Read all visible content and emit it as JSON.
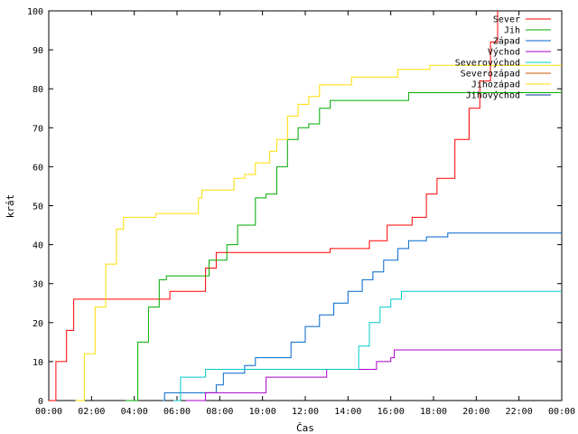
{
  "chart_data": {
    "type": "line",
    "xlabel": "Čas",
    "ylabel": "krát",
    "xlim": [
      "00:00",
      "24:00"
    ],
    "ylim": [
      0,
      100
    ],
    "x_ticks": [
      "00:00",
      "02:00",
      "04:00",
      "06:00",
      "08:00",
      "10:00",
      "12:00",
      "14:00",
      "16:00",
      "18:00",
      "20:00",
      "22:00",
      "00:00"
    ],
    "y_ticks": [
      0,
      10,
      20,
      30,
      40,
      50,
      60,
      70,
      80,
      90,
      100
    ],
    "legend_position": "top-right",
    "grid": false,
    "series": [
      {
        "name": "Sever",
        "color": "#ff0000",
        "points": [
          [
            "00:00",
            0
          ],
          [
            "00:20",
            10
          ],
          [
            "00:50",
            18
          ],
          [
            "01:10",
            26
          ],
          [
            "05:30",
            26
          ],
          [
            "05:40",
            28
          ],
          [
            "07:00",
            28
          ],
          [
            "07:20",
            34
          ],
          [
            "07:50",
            38
          ],
          [
            "13:00",
            38
          ],
          [
            "13:10",
            39
          ],
          [
            "14:40",
            39
          ],
          [
            "15:00",
            41
          ],
          [
            "15:50",
            45
          ],
          [
            "16:40",
            45
          ],
          [
            "17:00",
            47
          ],
          [
            "17:40",
            53
          ],
          [
            "18:10",
            57
          ],
          [
            "19:00",
            67
          ],
          [
            "19:40",
            75
          ],
          [
            "20:10",
            82
          ],
          [
            "20:40",
            92
          ],
          [
            "21:00",
            100
          ]
        ]
      },
      {
        "name": "Jih",
        "color": "#00aa00",
        "points": [
          [
            "03:35",
            0
          ],
          [
            "04:10",
            15
          ],
          [
            "04:40",
            24
          ],
          [
            "05:10",
            31
          ],
          [
            "05:30",
            32
          ],
          [
            "07:00",
            32
          ],
          [
            "07:30",
            36
          ],
          [
            "08:20",
            40
          ],
          [
            "08:50",
            45
          ],
          [
            "09:40",
            52
          ],
          [
            "10:10",
            53
          ],
          [
            "10:40",
            60
          ],
          [
            "11:10",
            67
          ],
          [
            "11:40",
            70
          ],
          [
            "12:10",
            71
          ],
          [
            "12:40",
            75
          ],
          [
            "13:10",
            77
          ],
          [
            "16:40",
            77
          ],
          [
            "16:50",
            79
          ],
          [
            "24:00",
            79
          ]
        ]
      },
      {
        "name": "Západ",
        "color": "#0066cc",
        "points": [
          [
            "05:20",
            0
          ],
          [
            "05:25",
            2
          ],
          [
            "07:40",
            2
          ],
          [
            "07:50",
            4
          ],
          [
            "08:10",
            7
          ],
          [
            "09:10",
            9
          ],
          [
            "09:40",
            11
          ],
          [
            "11:00",
            11
          ],
          [
            "11:20",
            15
          ],
          [
            "12:00",
            19
          ],
          [
            "12:40",
            22
          ],
          [
            "13:20",
            25
          ],
          [
            "14:00",
            28
          ],
          [
            "14:40",
            31
          ],
          [
            "15:10",
            33
          ],
          [
            "15:40",
            36
          ],
          [
            "16:20",
            39
          ],
          [
            "16:50",
            41
          ],
          [
            "17:40",
            42
          ],
          [
            "18:40",
            43
          ],
          [
            "24:00",
            43
          ]
        ]
      },
      {
        "name": "Východ",
        "color": "#aa00cc",
        "points": [
          [
            "06:25",
            0
          ],
          [
            "07:20",
            2
          ],
          [
            "10:00",
            2
          ],
          [
            "10:10",
            6
          ],
          [
            "12:50",
            6
          ],
          [
            "13:00",
            8
          ],
          [
            "15:00",
            8
          ],
          [
            "15:20",
            10
          ],
          [
            "16:00",
            11
          ],
          [
            "16:10",
            13
          ],
          [
            "24:00",
            13
          ]
        ]
      },
      {
        "name": "Severovýchod",
        "color": "#00cccc",
        "points": [
          [
            "05:50",
            0
          ],
          [
            "06:10",
            6
          ],
          [
            "07:00",
            6
          ],
          [
            "07:20",
            8
          ],
          [
            "14:00",
            8
          ],
          [
            "14:30",
            14
          ],
          [
            "15:00",
            20
          ],
          [
            "15:30",
            24
          ],
          [
            "16:00",
            26
          ],
          [
            "16:30",
            28
          ],
          [
            "24:00",
            28
          ]
        ]
      },
      {
        "name": "Severozápad",
        "color": "#cc5500",
        "points": []
      },
      {
        "name": "Jihozápad",
        "color": "#ffdd00",
        "points": [
          [
            "01:15",
            0
          ],
          [
            "01:40",
            12
          ],
          [
            "02:10",
            24
          ],
          [
            "02:40",
            35
          ],
          [
            "03:10",
            44
          ],
          [
            "03:30",
            47
          ],
          [
            "04:50",
            47
          ],
          [
            "05:00",
            48
          ],
          [
            "06:40",
            48
          ],
          [
            "07:00",
            52
          ],
          [
            "07:10",
            54
          ],
          [
            "08:20",
            54
          ],
          [
            "08:40",
            57
          ],
          [
            "09:10",
            58
          ],
          [
            "09:40",
            61
          ],
          [
            "10:20",
            64
          ],
          [
            "10:40",
            67
          ],
          [
            "11:10",
            73
          ],
          [
            "11:40",
            76
          ],
          [
            "12:10",
            78
          ],
          [
            "12:40",
            81
          ],
          [
            "13:00",
            81
          ],
          [
            "14:00",
            81
          ],
          [
            "14:10",
            83
          ],
          [
            "16:00",
            83
          ],
          [
            "16:20",
            85
          ],
          [
            "17:50",
            86
          ],
          [
            "24:00",
            86
          ]
        ]
      },
      {
        "name": "Jihovýchod",
        "color": "#003399",
        "points": []
      }
    ]
  }
}
